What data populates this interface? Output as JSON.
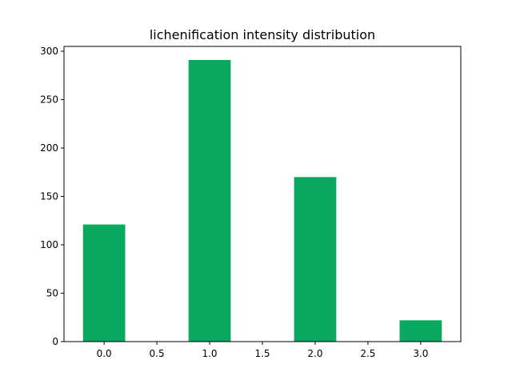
{
  "chart_data": {
    "type": "bar",
    "title": "lichenification intensity distribution",
    "xlabel": "",
    "ylabel": "",
    "x": [
      0.0,
      1.0,
      2.0,
      3.0
    ],
    "values": [
      121,
      291,
      170,
      22
    ],
    "bar_width": 0.4,
    "bar_color": "#0aa960",
    "xlim": [
      -0.38,
      3.38
    ],
    "ylim": [
      0,
      305
    ],
    "xticks": [
      0.0,
      0.5,
      1.0,
      1.5,
      2.0,
      2.5,
      3.0
    ],
    "xtick_labels": [
      "0.0",
      "0.5",
      "1.0",
      "1.5",
      "2.0",
      "2.5",
      "3.0"
    ],
    "yticks": [
      0,
      50,
      100,
      150,
      200,
      250,
      300
    ],
    "ytick_labels": [
      "0",
      "50",
      "100",
      "150",
      "200",
      "250",
      "300"
    ],
    "grid": false,
    "legend": "none"
  }
}
